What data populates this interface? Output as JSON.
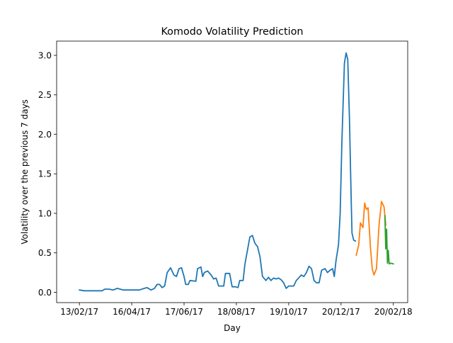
{
  "chart_data": {
    "type": "line",
    "title": "Komodo Volatility Prediction",
    "xlabel": "Day",
    "ylabel": "Volatility over the previous 7 days",
    "xlim": [
      "2017-01-17",
      "2018-03-09"
    ],
    "ylim": [
      -0.13,
      3.18
    ],
    "x_ticks": [
      {
        "date": "2017-02-13",
        "label": "13/02/17"
      },
      {
        "date": "2017-04-16",
        "label": "16/04/17"
      },
      {
        "date": "2017-06-17",
        "label": "17/06/17"
      },
      {
        "date": "2017-08-18",
        "label": "18/08/17"
      },
      {
        "date": "2017-10-19",
        "label": "19/10/17"
      },
      {
        "date": "2017-12-20",
        "label": "20/12/17"
      },
      {
        "date": "2018-02-20",
        "label": "20/02/18"
      }
    ],
    "y_ticks": [
      {
        "value": 0.0,
        "label": "0.0"
      },
      {
        "value": 0.5,
        "label": "0.5"
      },
      {
        "value": 1.0,
        "label": "1.0"
      },
      {
        "value": 1.5,
        "label": "1.5"
      },
      {
        "value": 2.0,
        "label": "2.0"
      },
      {
        "value": 2.5,
        "label": "2.5"
      },
      {
        "value": 3.0,
        "label": "3.0"
      }
    ],
    "grid": false,
    "legend": "none",
    "series": [
      {
        "color": "#1f77b4",
        "points": [
          [
            "2017-02-13",
            0.03
          ],
          [
            "2017-02-19",
            0.02
          ],
          [
            "2017-02-26",
            0.02
          ],
          [
            "2017-03-05",
            0.02
          ],
          [
            "2017-03-12",
            0.02
          ],
          [
            "2017-03-15",
            0.04
          ],
          [
            "2017-03-20",
            0.04
          ],
          [
            "2017-03-25",
            0.03
          ],
          [
            "2017-03-30",
            0.05
          ],
          [
            "2017-04-06",
            0.03
          ],
          [
            "2017-04-12",
            0.03
          ],
          [
            "2017-04-18",
            0.03
          ],
          [
            "2017-04-25",
            0.03
          ],
          [
            "2017-05-01",
            0.05
          ],
          [
            "2017-05-04",
            0.06
          ],
          [
            "2017-05-09",
            0.03
          ],
          [
            "2017-05-13",
            0.05
          ],
          [
            "2017-05-16",
            0.1
          ],
          [
            "2017-05-19",
            0.1
          ],
          [
            "2017-05-22",
            0.06
          ],
          [
            "2017-05-25",
            0.08
          ],
          [
            "2017-05-28",
            0.25
          ],
          [
            "2017-06-01",
            0.31
          ],
          [
            "2017-06-05",
            0.22
          ],
          [
            "2017-06-08",
            0.2
          ],
          [
            "2017-06-11",
            0.3
          ],
          [
            "2017-06-14",
            0.31
          ],
          [
            "2017-06-17",
            0.2
          ],
          [
            "2017-06-19",
            0.1
          ],
          [
            "2017-06-22",
            0.1
          ],
          [
            "2017-06-24",
            0.15
          ],
          [
            "2017-07-01",
            0.14
          ],
          [
            "2017-07-03",
            0.3
          ],
          [
            "2017-07-07",
            0.32
          ],
          [
            "2017-07-09",
            0.2
          ],
          [
            "2017-07-11",
            0.25
          ],
          [
            "2017-07-15",
            0.27
          ],
          [
            "2017-07-19",
            0.22
          ],
          [
            "2017-07-22",
            0.17
          ],
          [
            "2017-07-25",
            0.18
          ],
          [
            "2017-07-28",
            0.08
          ],
          [
            "2017-08-03",
            0.08
          ],
          [
            "2017-08-05",
            0.24
          ],
          [
            "2017-08-10",
            0.24
          ],
          [
            "2017-08-13",
            0.07
          ],
          [
            "2017-08-17",
            0.07
          ],
          [
            "2017-08-20",
            0.06
          ],
          [
            "2017-08-22",
            0.15
          ],
          [
            "2017-08-26",
            0.15
          ],
          [
            "2017-08-28",
            0.35
          ],
          [
            "2017-09-03",
            0.7
          ],
          [
            "2017-09-06",
            0.72
          ],
          [
            "2017-09-09",
            0.62
          ],
          [
            "2017-09-12",
            0.58
          ],
          [
            "2017-09-15",
            0.45
          ],
          [
            "2017-09-18",
            0.2
          ],
          [
            "2017-09-22",
            0.15
          ],
          [
            "2017-09-25",
            0.19
          ],
          [
            "2017-09-28",
            0.15
          ],
          [
            "2017-10-01",
            0.18
          ],
          [
            "2017-10-04",
            0.17
          ],
          [
            "2017-10-07",
            0.18
          ],
          [
            "2017-10-10",
            0.16
          ],
          [
            "2017-10-13",
            0.12
          ],
          [
            "2017-10-16",
            0.05
          ],
          [
            "2017-10-19",
            0.08
          ],
          [
            "2017-10-25",
            0.08
          ],
          [
            "2017-10-28",
            0.15
          ],
          [
            "2017-11-03",
            0.22
          ],
          [
            "2017-11-06",
            0.2
          ],
          [
            "2017-11-09",
            0.25
          ],
          [
            "2017-11-12",
            0.33
          ],
          [
            "2017-11-15",
            0.3
          ],
          [
            "2017-11-18",
            0.15
          ],
          [
            "2017-11-21",
            0.12
          ],
          [
            "2017-11-24",
            0.12
          ],
          [
            "2017-11-27",
            0.28
          ],
          [
            "2017-12-01",
            0.3
          ],
          [
            "2017-12-04",
            0.25
          ],
          [
            "2017-12-07",
            0.28
          ],
          [
            "2017-12-10",
            0.3
          ],
          [
            "2017-12-12",
            0.2
          ],
          [
            "2017-12-14",
            0.4
          ],
          [
            "2017-12-17",
            0.6
          ],
          [
            "2017-12-19",
            1.0
          ],
          [
            "2017-12-21",
            1.9
          ],
          [
            "2017-12-24",
            2.9
          ],
          [
            "2017-12-26",
            3.03
          ],
          [
            "2017-12-28",
            2.95
          ],
          [
            "2017-12-30",
            2.2
          ],
          [
            "2018-01-01",
            1.2
          ],
          [
            "2018-01-02",
            0.75
          ],
          [
            "2018-01-04",
            0.66
          ],
          [
            "2018-01-06",
            0.65
          ]
        ]
      },
      {
        "color": "#ff7f0e",
        "points": [
          [
            "2018-01-07",
            0.47
          ],
          [
            "2018-01-10",
            0.6
          ],
          [
            "2018-01-12",
            0.88
          ],
          [
            "2018-01-15",
            0.82
          ],
          [
            "2018-01-17",
            1.13
          ],
          [
            "2018-01-19",
            1.05
          ],
          [
            "2018-01-21",
            1.07
          ],
          [
            "2018-01-24",
            0.55
          ],
          [
            "2018-01-26",
            0.3
          ],
          [
            "2018-01-28",
            0.22
          ],
          [
            "2018-01-31",
            0.3
          ],
          [
            "2018-02-03",
            0.85
          ],
          [
            "2018-02-06",
            1.15
          ],
          [
            "2018-02-09",
            1.08
          ],
          [
            "2018-02-11",
            0.85
          ]
        ]
      },
      {
        "color": "#2ca02c",
        "points": [
          [
            "2018-02-10",
            0.97
          ],
          [
            "2018-02-11",
            0.55
          ],
          [
            "2018-02-12",
            0.8
          ],
          [
            "2018-02-13",
            0.37
          ],
          [
            "2018-02-14",
            0.53
          ],
          [
            "2018-02-15",
            0.36
          ],
          [
            "2018-02-17",
            0.37
          ],
          [
            "2018-02-20",
            0.36
          ]
        ]
      }
    ]
  }
}
